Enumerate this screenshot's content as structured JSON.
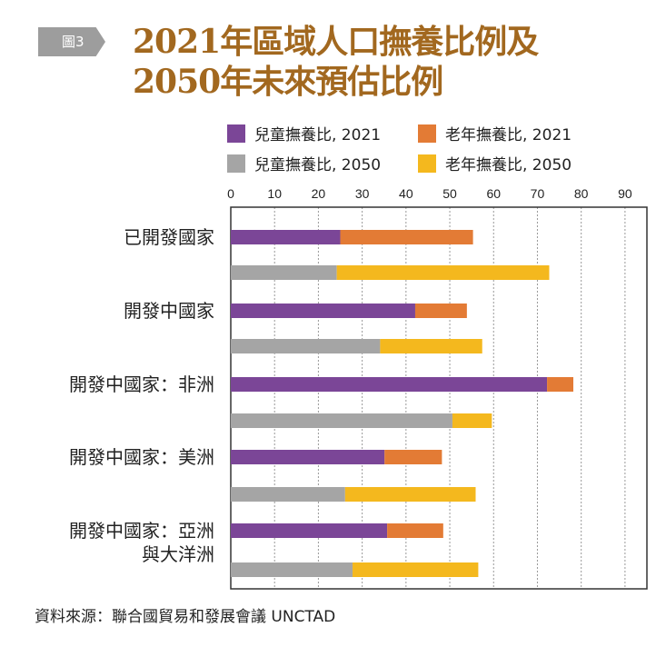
{
  "badge": "圖3",
  "title_lines": [
    "2021年區域人口撫養比例及",
    "2050年未來預估比例"
  ],
  "colors": {
    "child_2021": "#7b4697",
    "old_2021": "#e37b35",
    "child_2050": "#a5a5a5",
    "old_2050": "#f4b81e",
    "title": "#a2681f"
  },
  "source": "資料來源：聯合國貿易和發展會議 UNCTAD",
  "chart_data": {
    "type": "bar",
    "orientation": "horizontal",
    "stacked": true,
    "xlim": [
      0,
      95
    ],
    "xticks": [
      0,
      10,
      20,
      30,
      40,
      50,
      60,
      70,
      80,
      90
    ],
    "grid": true,
    "legend_position": "top",
    "groups": [
      {
        "label": "已開發國家",
        "bars": [
          {
            "year": "2021",
            "child": 25,
            "old": 30.3
          },
          {
            "year": "2050",
            "child": 24.2,
            "old": 48.5
          }
        ]
      },
      {
        "label": "開發中國家",
        "bars": [
          {
            "year": "2021",
            "child": 42.1,
            "old": 11.8
          },
          {
            "year": "2050",
            "child": 34.1,
            "old": 23.3
          }
        ]
      },
      {
        "label": "開發中國家：非洲",
        "bars": [
          {
            "year": "2021",
            "child": 72.2,
            "old": 6
          },
          {
            "year": "2050",
            "child": 50.6,
            "old": 9
          }
        ]
      },
      {
        "label": "開發中國家：美洲",
        "bars": [
          {
            "year": "2021",
            "child": 35.1,
            "old": 13.1
          },
          {
            "year": "2050",
            "child": 26.1,
            "old": 29.8
          }
        ]
      },
      {
        "label": "開發中國家：亞洲\n與大洋洲",
        "bars": [
          {
            "year": "2021",
            "child": 35.7,
            "old": 12.8
          },
          {
            "year": "2050",
            "child": 27.8,
            "old": 28.7
          }
        ]
      }
    ],
    "legend": [
      {
        "name": "兒童撫養比, 2021",
        "color_key": "child_2021"
      },
      {
        "name": "老年撫養比, 2021",
        "color_key": "old_2021"
      },
      {
        "name": "兒童撫養比, 2050",
        "color_key": "child_2050"
      },
      {
        "name": "老年撫養比, 2050",
        "color_key": "old_2050"
      }
    ]
  }
}
